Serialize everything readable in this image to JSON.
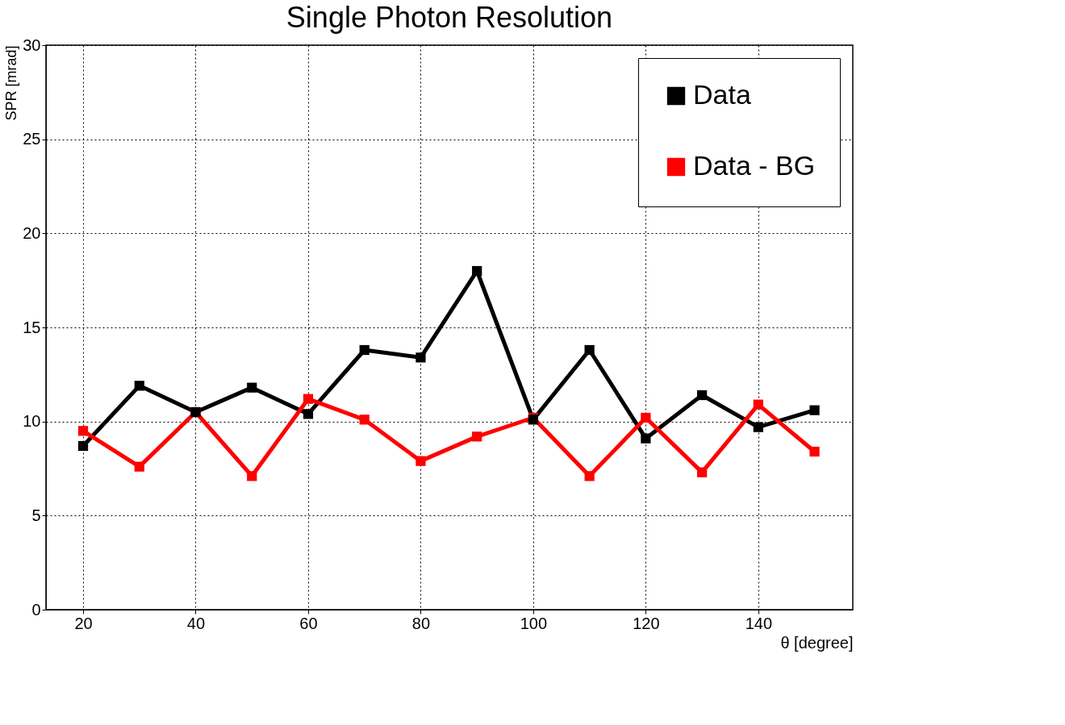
{
  "chart_data": {
    "type": "line",
    "title": "Single Photon Resolution",
    "xlabel": "θ [degree]",
    "ylabel": "SPR [mrad]",
    "x": [
      20,
      30,
      40,
      50,
      60,
      70,
      80,
      90,
      100,
      110,
      120,
      130,
      140,
      150
    ],
    "series": [
      {
        "name": "Data",
        "color": "#000000",
        "values": [
          8.7,
          11.9,
          10.5,
          11.8,
          10.4,
          13.8,
          13.4,
          18.0,
          10.1,
          13.8,
          9.1,
          11.4,
          9.7,
          10.6
        ]
      },
      {
        "name": "Data - BG",
        "color": "#ff0000",
        "values": [
          9.5,
          7.6,
          10.5,
          7.1,
          11.2,
          10.1,
          7.9,
          9.2,
          10.2,
          7.1,
          10.2,
          7.3,
          10.9,
          8.4
        ]
      }
    ],
    "xlim": [
      13.4,
      156.8
    ],
    "xticks": [
      20,
      40,
      60,
      80,
      100,
      120,
      140
    ],
    "ylim": [
      0,
      30
    ],
    "yticks": [
      0,
      5,
      10,
      15,
      20,
      25,
      30
    ],
    "grid": true,
    "legend": "top right",
    "marker": "square",
    "line_style": "solid"
  }
}
